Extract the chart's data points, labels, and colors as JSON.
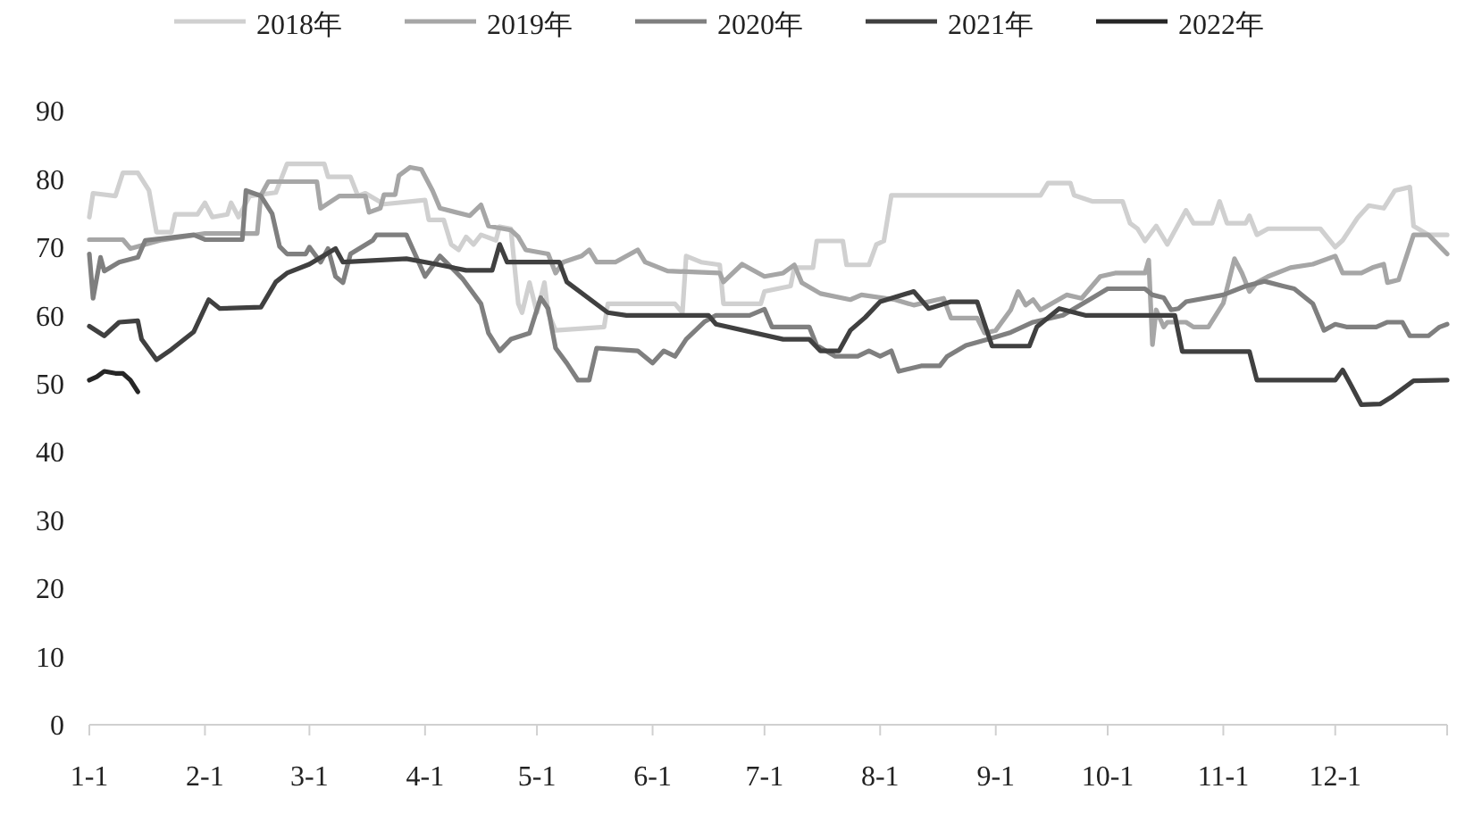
{
  "chart_data": {
    "type": "line",
    "legend": "top",
    "grid": false,
    "xlim": [
      "--01-01",
      "--12-31"
    ],
    "xticks": [
      {
        "value": "--01-01",
        "label": "1-1"
      },
      {
        "value": "--02-01",
        "label": "2-1"
      },
      {
        "value": "--03-01",
        "label": "3-1"
      },
      {
        "value": "--04-01",
        "label": "4-1"
      },
      {
        "value": "--05-01",
        "label": "5-1"
      },
      {
        "value": "--06-01",
        "label": "6-1"
      },
      {
        "value": "--07-01",
        "label": "7-1"
      },
      {
        "value": "--08-01",
        "label": "8-1"
      },
      {
        "value": "--09-01",
        "label": "9-1"
      },
      {
        "value": "--10-01",
        "label": "10-1"
      },
      {
        "value": "--11-01",
        "label": "11-1"
      },
      {
        "value": "--12-01",
        "label": "12-1"
      }
    ],
    "ylim": [
      0,
      90
    ],
    "yticks": [
      0,
      10,
      20,
      30,
      40,
      50,
      60,
      70,
      80,
      90
    ],
    "series": [
      {
        "name": "2018年",
        "color": "#d0d0d0",
        "x": [
          "--01-01",
          "--01-02",
          "--01-08",
          "--01-10",
          "--01-14",
          "--01-17",
          "--01-19",
          "--01-23",
          "--01-24",
          "--01-30",
          "--02-01",
          "--02-03",
          "--02-07",
          "--02-08",
          "--02-10",
          "--02-13",
          "--02-20",
          "--02-23",
          "--03-05",
          "--03-06",
          "--03-12",
          "--03-14",
          "--03-16",
          "--03-21",
          "--04-01",
          "--04-02",
          "--04-06",
          "--04-08",
          "--04-10",
          "--04-12",
          "--04-14",
          "--04-16",
          "--04-20",
          "--04-21",
          "--04-24",
          "--04-26",
          "--04-27",
          "--04-29",
          "--05-01",
          "--05-03",
          "--05-04",
          "--05-06",
          "--05-19",
          "--05-20",
          "--06-07",
          "--06-09",
          "--06-10",
          "--06-14",
          "--06-19",
          "--06-20",
          "--06-30",
          "--07-01",
          "--07-08",
          "--07-09",
          "--07-14",
          "--07-15",
          "--07-22",
          "--07-23",
          "--07-29",
          "--07-31",
          "--08-02",
          "--08-04",
          "--09-13",
          "--09-15",
          "--09-21",
          "--09-22",
          "--09-27",
          "--10-05",
          "--10-07",
          "--10-09",
          "--10-11",
          "--10-14",
          "--10-17",
          "--10-22",
          "--10-24",
          "--10-29",
          "--10-31",
          "--11-02",
          "--11-07",
          "--11-08",
          "--11-10",
          "--11-13",
          "--11-27",
          "--12-01",
          "--12-03",
          "--12-07",
          "--12-10",
          "--12-14",
          "--12-17",
          "--12-21",
          "--12-22",
          "--12-26",
          "--12-31"
        ],
        "values": [
          74.4,
          77.9,
          77.5,
          80.9,
          80.9,
          78.3,
          72.2,
          72.2,
          74.8,
          74.8,
          76.5,
          74.4,
          74.8,
          76.5,
          74.4,
          77.5,
          78,
          82.2,
          82.2,
          80.3,
          80.3,
          77.5,
          77.9,
          76.3,
          76.9,
          74,
          74,
          70.4,
          69.6,
          71.5,
          70.4,
          71.8,
          71,
          73,
          72.7,
          61.7,
          60.4,
          64.8,
          60.4,
          64.8,
          60.4,
          57.8,
          58.3,
          61.7,
          61.7,
          60.4,
          68.7,
          67.8,
          67.4,
          61.7,
          61.7,
          63.5,
          64.3,
          67,
          67,
          70.9,
          70.9,
          67.4,
          67.4,
          70.4,
          70.9,
          77.6,
          77.6,
          79.4,
          79.4,
          77.6,
          76.7,
          76.7,
          73.5,
          72.7,
          70.9,
          73.1,
          70.4,
          75.4,
          73.5,
          73.5,
          76.7,
          73.5,
          73.5,
          74.6,
          71.8,
          72.7,
          72.7,
          70,
          71,
          74.3,
          76.1,
          75.7,
          78.3,
          78.8,
          73.1,
          71.8,
          71.8
        ]
      },
      {
        "name": "2019年",
        "color": "#a6a6a6",
        "x": [
          "--01-01",
          "--01-10",
          "--01-12",
          "--01-20",
          "--02-01",
          "--02-15",
          "--02-16",
          "--02-18",
          "--03-03",
          "--03-04",
          "--03-09",
          "--03-16",
          "--03-17",
          "--03-20",
          "--03-21",
          "--03-24",
          "--03-25",
          "--03-28",
          "--03-31",
          "--04-03",
          "--04-05",
          "--04-13",
          "--04-16",
          "--04-18",
          "--04-24",
          "--04-26",
          "--04-28",
          "--05-04",
          "--05-06",
          "--05-08",
          "--05-13",
          "--05-15",
          "--05-17",
          "--05-22",
          "--05-28",
          "--05-30",
          "--06-05",
          "--06-19",
          "--06-20",
          "--06-25",
          "--07-01",
          "--07-06",
          "--07-09",
          "--07-11",
          "--07-16",
          "--07-24",
          "--07-27",
          "--08-05",
          "--08-10",
          "--08-18",
          "--08-20",
          "--08-27",
          "--08-29",
          "--09-01",
          "--09-05",
          "--09-07",
          "--09-09",
          "--09-11",
          "--09-13",
          "--09-20",
          "--09-24",
          "--09-29",
          "--10-03",
          "--10-11",
          "--10-12",
          "--10-13",
          "--10-14",
          "--10-16",
          "--10-17",
          "--10-22",
          "--10-24",
          "--10-28",
          "--11-01",
          "--11-04",
          "--11-06",
          "--11-08",
          "--11-10",
          "--11-13",
          "--11-19",
          "--11-25",
          "--12-01",
          "--12-03",
          "--12-08",
          "--12-11",
          "--12-14",
          "--12-15",
          "--12-18",
          "--12-22",
          "--12-26",
          "--12-31"
        ],
        "values": [
          71.1,
          71.1,
          69.8,
          71,
          72,
          72,
          77.6,
          79.6,
          79.6,
          75.7,
          77.5,
          77.5,
          75.1,
          75.7,
          77.7,
          77.7,
          80.5,
          81.7,
          81.4,
          78.3,
          75.7,
          74.6,
          76.2,
          73.1,
          72.5,
          71.5,
          69.6,
          69,
          66.2,
          67.8,
          68.7,
          69.6,
          67.8,
          67.8,
          69.6,
          67.8,
          66.5,
          66.2,
          64.9,
          67.5,
          65.7,
          66.2,
          67.4,
          64.8,
          63.2,
          62.3,
          63,
          62.3,
          61.5,
          62.5,
          59.6,
          59.6,
          57.4,
          57.8,
          60.8,
          63.5,
          61.5,
          62.3,
          60.8,
          63,
          62.5,
          65.7,
          66.2,
          66.2,
          68.1,
          55.7,
          60.8,
          58.3,
          59,
          59,
          58.3,
          58.3,
          61.8,
          68.3,
          66.2,
          63.5,
          64.8,
          65.7,
          67,
          67.5,
          68.7,
          66.2,
          66.2,
          67,
          67.5,
          64.8,
          65.2,
          71.8,
          71.8,
          69
        ]
      },
      {
        "name": "2020年",
        "color": "#7f7f7f",
        "x": [
          "--01-01",
          "--01-02",
          "--01-04",
          "--01-05",
          "--01-09",
          "--01-14",
          "--01-16",
          "--01-23",
          "--01-29",
          "--02-01",
          "--02-11",
          "--02-12",
          "--02-16",
          "--02-19",
          "--02-21",
          "--02-23",
          "--02-28",
          "--03-01",
          "--03-04",
          "--03-06",
          "--03-08",
          "--03-10",
          "--03-12",
          "--03-18",
          "--03-19",
          "--03-27",
          "--04-01",
          "--04-05",
          "--04-11",
          "--04-16",
          "--04-18",
          "--04-21",
          "--04-24",
          "--04-29",
          "--05-02",
          "--05-04",
          "--05-06",
          "--05-09",
          "--05-12",
          "--05-15",
          "--05-17",
          "--05-28",
          "--06-01",
          "--06-04",
          "--06-07",
          "--06-10",
          "--06-15",
          "--06-18",
          "--06-27",
          "--07-01",
          "--07-03",
          "--07-13",
          "--07-15",
          "--07-20",
          "--07-26",
          "--07-29",
          "--08-01",
          "--08-04",
          "--08-06",
          "--08-12",
          "--08-17",
          "--08-19",
          "--08-24",
          "--08-30",
          "--09-05",
          "--09-11",
          "--09-19",
          "--09-27",
          "--10-01",
          "--10-11",
          "--10-13",
          "--10-16",
          "--10-18",
          "--10-20",
          "--10-22",
          "--11-01",
          "--11-07",
          "--11-12",
          "--11-17",
          "--11-20",
          "--11-25",
          "--11-28",
          "--12-01",
          "--12-04",
          "--12-12",
          "--12-15",
          "--12-19",
          "--12-21",
          "--12-26",
          "--12-29",
          "--12-31"
        ],
        "values": [
          69,
          62.5,
          68.5,
          66.5,
          67.8,
          68.5,
          71,
          71.4,
          71.8,
          71.1,
          71.1,
          78.3,
          77.5,
          74.9,
          70.1,
          69,
          69,
          70,
          67.8,
          69.8,
          65.7,
          64.8,
          69,
          71,
          71.8,
          71.8,
          65.7,
          68.7,
          65.4,
          61.7,
          57.4,
          54.8,
          56.5,
          57.4,
          62.6,
          61,
          55.2,
          53,
          50.5,
          50.5,
          55.2,
          54.8,
          53,
          54.8,
          54,
          56.5,
          59.1,
          60,
          60,
          60.9,
          58.3,
          58.3,
          55.6,
          54,
          54,
          54.8,
          54,
          54.8,
          51.8,
          52.6,
          52.6,
          54,
          55.6,
          56.5,
          57.5,
          59,
          60,
          62.6,
          63.9,
          63.9,
          63,
          62.6,
          60.8,
          61,
          62,
          63,
          64.3,
          65,
          64.3,
          63.9,
          61.7,
          57.8,
          58.7,
          58.3,
          58.3,
          59,
          59,
          57,
          57,
          58.3,
          58.7
        ]
      },
      {
        "name": "2021年",
        "color": "#404040",
        "x": [
          "--01-01",
          "--01-05",
          "--01-09",
          "--01-14",
          "--01-15",
          "--01-19",
          "--01-23",
          "--01-29",
          "--02-02",
          "--02-05",
          "--02-16",
          "--02-20",
          "--02-23",
          "--03-01",
          "--03-08",
          "--03-10",
          "--03-27",
          "--04-04",
          "--04-12",
          "--04-19",
          "--04-21",
          "--04-23",
          "--05-07",
          "--05-09",
          "--05-20",
          "--05-25",
          "--06-16",
          "--06-18",
          "--07-06",
          "--07-13",
          "--07-16",
          "--07-21",
          "--07-24",
          "--07-28",
          "--08-01",
          "--08-10",
          "--08-14",
          "--08-20",
          "--08-27",
          "--08-31",
          "--09-10",
          "--09-12",
          "--09-18",
          "--09-25",
          "--10-19",
          "--10-21",
          "--11-08",
          "--11-10",
          "--12-01",
          "--12-03",
          "--12-05",
          "--12-08",
          "--12-13",
          "--12-16",
          "--12-22",
          "--12-31"
        ],
        "values": [
          58.4,
          57,
          59,
          59.2,
          56.5,
          53.5,
          55,
          57.6,
          62.3,
          61,
          61.2,
          64.9,
          66.2,
          67.5,
          69.8,
          67.8,
          68.3,
          67.5,
          66.6,
          66.6,
          70.4,
          67.8,
          67.8,
          64.9,
          60.4,
          60,
          60,
          58.7,
          56.5,
          56.5,
          54.8,
          54.8,
          57.8,
          59.7,
          62,
          63.5,
          61,
          62,
          62,
          55.5,
          55.5,
          58.3,
          61,
          60,
          60,
          54.7,
          54.7,
          50.5,
          50.5,
          52,
          50,
          46.9,
          47,
          48,
          50.4,
          50.5
        ]
      },
      {
        "name": "2022年",
        "color": "#262626",
        "x": [
          "--01-01",
          "--01-03",
          "--01-05",
          "--01-08",
          "--01-10",
          "--01-12",
          "--01-14"
        ],
        "values": [
          50.5,
          51,
          51.8,
          51.5,
          51.5,
          50.5,
          48.8
        ]
      }
    ]
  }
}
